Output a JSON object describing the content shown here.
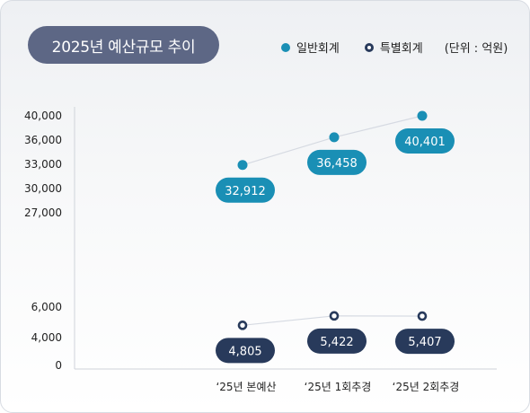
{
  "chart_data": {
    "type": "line",
    "title": "2025년 예산규모 추이",
    "unit_label": "(단위 : 억원)",
    "categories": [
      "‘25년 본예산",
      "‘25년 1회추경",
      "‘25년 2회추경"
    ],
    "series": [
      {
        "name": "일반회계",
        "values": [
          32912,
          36458,
          40401
        ],
        "labels": [
          "32,912",
          "36,458",
          "40,401"
        ],
        "color": "#1a8fb5",
        "marker": "filled"
      },
      {
        "name": "특별회계",
        "values": [
          4805,
          5422,
          5407
        ],
        "labels": [
          "4,805",
          "5,422",
          "5,407"
        ],
        "color": "#283a5b",
        "marker": "ring"
      }
    ],
    "y_axis": {
      "broken": true,
      "ticks": [
        0,
        4000,
        6000,
        27000,
        30000,
        33000,
        36000,
        40000
      ],
      "tick_labels": [
        "0",
        "4,000",
        "6,000",
        "27,000",
        "30,000",
        "33,000",
        "36,000",
        "40,000"
      ],
      "lower_segment": [
        0,
        6000
      ],
      "upper_segment": [
        27000,
        40000
      ]
    },
    "grid": false,
    "legend_position": "top-right"
  },
  "colors": {
    "title_pill": "#5d6785",
    "general_account": "#1a8fb5",
    "special_account": "#283a5b",
    "connector_line": "#d6dae2",
    "axis": "#cfd3da"
  }
}
